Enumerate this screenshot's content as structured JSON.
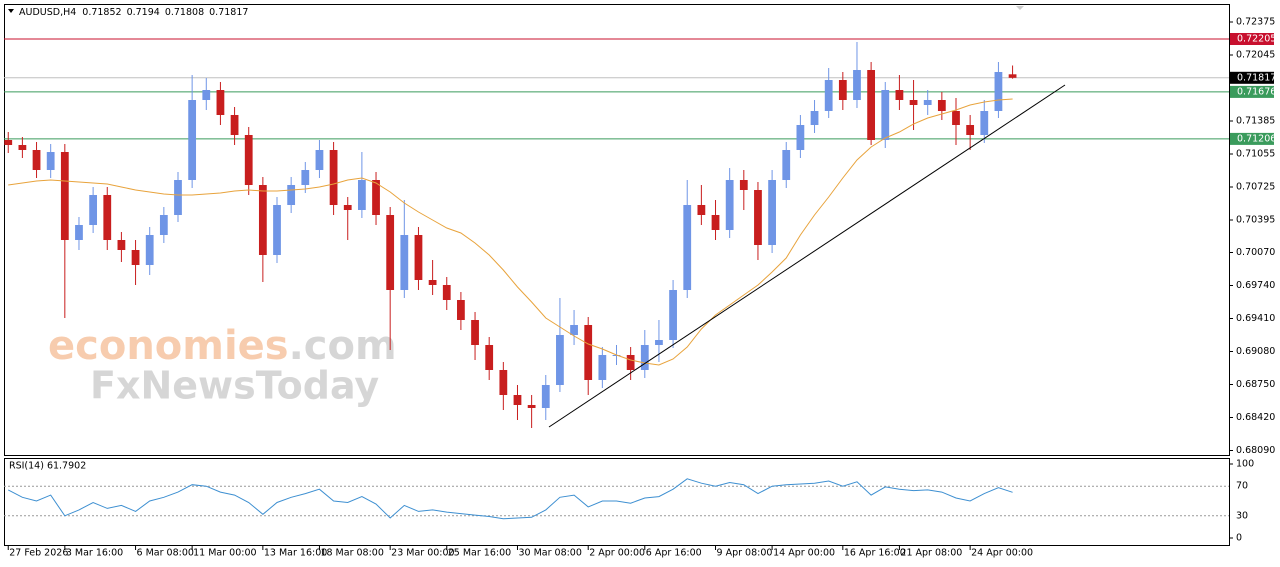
{
  "header": {
    "symbol": "AUDUSD,H4"
  },
  "watermark": {
    "brand": "economies",
    "suffix": ".com",
    "brand2": "FxNewsToday"
  },
  "chart_data": [
    {
      "type": "candlestick",
      "title": "AUDUSD,H4",
      "up_color": "#6f95e6",
      "down_color": "#c81e1e",
      "xlim": [
        -0.3,
        86.3
      ],
      "xticks": [
        {
          "value": 0,
          "label": "27 Feb 2026"
        },
        {
          "value": 4,
          "label": "3 Mar 16:00"
        },
        {
          "value": 9,
          "label": "6 Mar 08:00"
        },
        {
          "value": 13,
          "label": "11 Mar 00:00"
        },
        {
          "value": 18,
          "label": "13 Mar 16:00"
        },
        {
          "value": 22,
          "label": "18 Mar 08:00"
        },
        {
          "value": 27,
          "label": "23 Mar 00:00"
        },
        {
          "value": 31,
          "label": "25 Mar 16:00"
        },
        {
          "value": 36,
          "label": "30 Mar 08:00"
        },
        {
          "value": 41,
          "label": "2 Apr 00:00"
        },
        {
          "value": 45,
          "label": "6 Apr 16:00"
        },
        {
          "value": 50,
          "label": "9 Apr 08:00"
        },
        {
          "value": 54,
          "label": "14 Apr 00:00"
        },
        {
          "value": 59,
          "label": "16 Apr 16:00"
        },
        {
          "value": 63,
          "label": "21 Apr 08:00"
        },
        {
          "value": 68,
          "label": "24 Apr 00:00"
        }
      ],
      "ylim": [
        0.68045,
        0.72545
      ],
      "yticks": [
        {
          "value": 0.72375,
          "label": "0.72375"
        },
        {
          "value": 0.72045,
          "label": "0.72045"
        },
        {
          "value": 0.71385,
          "label": "0.71385"
        },
        {
          "value": 0.71055,
          "label": "0.71055"
        },
        {
          "value": 0.70725,
          "label": "0.70725"
        },
        {
          "value": 0.70395,
          "label": "0.70395"
        },
        {
          "value": 0.7007,
          "label": "0.70070"
        },
        {
          "value": 0.6974,
          "label": "0.69740"
        },
        {
          "value": 0.6941,
          "label": "0.69410"
        },
        {
          "value": 0.6908,
          "label": "0.69080"
        },
        {
          "value": 0.6875,
          "label": "0.68750"
        },
        {
          "value": 0.6842,
          "label": "0.68420"
        },
        {
          "value": 0.6809,
          "label": "0.68090"
        }
      ],
      "levels": [
        {
          "value": 0.72205,
          "color": "#c8102e"
        },
        {
          "value": 0.71676,
          "color": "#3a9b5c"
        },
        {
          "value": 0.71206,
          "color": "#3a9b5c"
        }
      ],
      "current_color": "#c0c0c0",
      "candles": [
        [
          0.71195,
          0.71275,
          0.71065,
          0.71145
        ],
        [
          0.71145,
          0.71225,
          0.71015,
          0.71095
        ],
        [
          0.71095,
          0.71175,
          0.70815,
          0.70895
        ],
        [
          0.70895,
          0.71155,
          0.70815,
          0.71075
        ],
        [
          0.71075,
          0.71155,
          0.69415,
          0.70195
        ],
        [
          0.70195,
          0.70425,
          0.70095,
          0.70345
        ],
        [
          0.70345,
          0.70725,
          0.70265,
          0.70645
        ],
        [
          0.70645,
          0.70725,
          0.70095,
          0.70195
        ],
        [
          0.70195,
          0.70275,
          0.69975,
          0.70095
        ],
        [
          0.70095,
          0.70195,
          0.69745,
          0.69945
        ],
        [
          0.69945,
          0.70325,
          0.69845,
          0.70245
        ],
        [
          0.70245,
          0.70525,
          0.70165,
          0.70445
        ],
        [
          0.70445,
          0.70875,
          0.70375,
          0.70795
        ],
        [
          0.70795,
          0.71845,
          0.70715,
          0.71595
        ],
        [
          0.71595,
          0.71815,
          0.71495,
          0.71695
        ],
        [
          0.71695,
          0.71775,
          0.71345,
          0.71445
        ],
        [
          0.71445,
          0.71525,
          0.71145,
          0.71245
        ],
        [
          0.71245,
          0.71325,
          0.70645,
          0.70745
        ],
        [
          0.70745,
          0.70825,
          0.69775,
          0.70045
        ],
        [
          0.70045,
          0.70625,
          0.69965,
          0.70545
        ],
        [
          0.70545,
          0.70825,
          0.70465,
          0.70745
        ],
        [
          0.70745,
          0.70975,
          0.70665,
          0.70895
        ],
        [
          0.70895,
          0.71195,
          0.70815,
          0.71095
        ],
        [
          0.71095,
          0.71175,
          0.70445,
          0.70545
        ],
        [
          0.70545,
          0.70625,
          0.70195,
          0.70495
        ],
        [
          0.70495,
          0.71075,
          0.70415,
          0.70795
        ],
        [
          0.70795,
          0.70875,
          0.70345,
          0.70445
        ],
        [
          0.70445,
          0.70525,
          0.69095,
          0.69695
        ],
        [
          0.69695,
          0.70595,
          0.69615,
          0.70245
        ],
        [
          0.70245,
          0.70325,
          0.69695,
          0.69795
        ],
        [
          0.69795,
          0.69995,
          0.69645,
          0.69745
        ],
        [
          0.69745,
          0.69825,
          0.69495,
          0.69595
        ],
        [
          0.69595,
          0.69675,
          0.69295,
          0.69395
        ],
        [
          0.69395,
          0.69475,
          0.68995,
          0.69145
        ],
        [
          0.69145,
          0.69225,
          0.68795,
          0.68895
        ],
        [
          0.68895,
          0.68975,
          0.68495,
          0.68645
        ],
        [
          0.68645,
          0.68745,
          0.68395,
          0.68545
        ],
        [
          0.68545,
          0.68645,
          0.68315,
          0.68515
        ],
        [
          0.68515,
          0.68845,
          0.68395,
          0.68745
        ],
        [
          0.68745,
          0.69615,
          0.68675,
          0.69245
        ],
        [
          0.69245,
          0.69495,
          0.69145,
          0.69345
        ],
        [
          0.69345,
          0.69425,
          0.68645,
          0.68795
        ],
        [
          0.68795,
          0.69125,
          0.68715,
          0.69045
        ],
        [
          0.69045,
          0.69145,
          0.68945,
          0.69045
        ],
        [
          0.69045,
          0.69125,
          0.68795,
          0.68895
        ],
        [
          0.68895,
          0.69295,
          0.68815,
          0.69145
        ],
        [
          0.69145,
          0.69395,
          0.68975,
          0.69195
        ],
        [
          0.69195,
          0.69795,
          0.69115,
          0.69695
        ],
        [
          0.69695,
          0.70795,
          0.69615,
          0.70545
        ],
        [
          0.70545,
          0.70745,
          0.70345,
          0.70445
        ],
        [
          0.70445,
          0.70595,
          0.70195,
          0.70295
        ],
        [
          0.70295,
          0.70915,
          0.70215,
          0.70795
        ],
        [
          0.70795,
          0.70895,
          0.70495,
          0.70695
        ],
        [
          0.70695,
          0.70775,
          0.69995,
          0.70145
        ],
        [
          0.70145,
          0.70895,
          0.70065,
          0.70795
        ],
        [
          0.70795,
          0.71175,
          0.70715,
          0.71095
        ],
        [
          0.71095,
          0.71445,
          0.71015,
          0.71345
        ],
        [
          0.71345,
          0.71595,
          0.71265,
          0.71485
        ],
        [
          0.71485,
          0.71915,
          0.71415,
          0.71795
        ],
        [
          0.71795,
          0.71875,
          0.71495,
          0.71595
        ],
        [
          0.71595,
          0.72175,
          0.71515,
          0.71895
        ],
        [
          0.71895,
          0.71975,
          0.71145,
          0.71195
        ],
        [
          0.71195,
          0.71775,
          0.71115,
          0.71695
        ],
        [
          0.71695,
          0.71845,
          0.71495,
          0.71595
        ],
        [
          0.71595,
          0.71795,
          0.71295,
          0.71545
        ],
        [
          0.71545,
          0.71695,
          0.71445,
          0.71595
        ],
        [
          0.71595,
          0.71675,
          0.71395,
          0.71485
        ],
        [
          0.71485,
          0.71615,
          0.71145,
          0.71345
        ],
        [
          0.71345,
          0.71445,
          0.71095,
          0.71245
        ],
        [
          0.71245,
          0.71595,
          0.71165,
          0.71485
        ],
        [
          0.71485,
          0.71975,
          0.71415,
          0.71875
        ],
        [
          0.71852,
          0.7194,
          0.71808,
          0.71817
        ]
      ],
      "ma": {
        "color": "#e8a33c",
        "values": [
          0.70745,
          0.70765,
          0.70785,
          0.70795,
          0.70785,
          0.70775,
          0.70765,
          0.70755,
          0.70725,
          0.70695,
          0.70675,
          0.70655,
          0.70645,
          0.70645,
          0.70655,
          0.70665,
          0.70685,
          0.70695,
          0.70685,
          0.70685,
          0.70695,
          0.70705,
          0.70725,
          0.70755,
          0.70795,
          0.70815,
          0.70765,
          0.70675,
          0.70565,
          0.70475,
          0.70395,
          0.70315,
          0.70265,
          0.70165,
          0.70045,
          0.69895,
          0.69725,
          0.69575,
          0.69415,
          0.69325,
          0.69235,
          0.69155,
          0.69105,
          0.69045,
          0.68995,
          0.68965,
          0.68945,
          0.69005,
          0.69125,
          0.69305,
          0.69445,
          0.69545,
          0.69645,
          0.69745,
          0.69875,
          0.70015,
          0.70245,
          0.70445,
          0.70625,
          0.70815,
          0.70995,
          0.71125,
          0.71215,
          0.71275,
          0.71355,
          0.71415,
          0.71455,
          0.71495,
          0.71545,
          0.71575,
          0.71595,
          0.71605
        ]
      }
    },
    {
      "type": "line",
      "title": "RSI(14) 61.7902",
      "color": "#3d8fd1",
      "ylim": [
        0,
        100
      ],
      "yticks": [
        0,
        30,
        70,
        100
      ],
      "values": [
        65,
        55,
        50,
        58,
        30,
        38,
        48,
        40,
        44,
        36,
        50,
        55,
        62,
        72,
        70,
        62,
        58,
        48,
        32,
        48,
        55,
        60,
        66,
        50,
        48,
        56,
        46,
        27,
        44,
        36,
        38,
        35,
        33,
        31,
        29,
        26,
        27,
        28,
        38,
        55,
        58,
        42,
        50,
        50,
        47,
        54,
        56,
        66,
        80,
        74,
        70,
        75,
        72,
        60,
        70,
        72,
        73,
        74,
        77,
        70,
        76,
        58,
        69,
        66,
        64,
        65,
        62,
        54,
        50,
        60,
        68,
        61.79
      ]
    }
  ]
}
